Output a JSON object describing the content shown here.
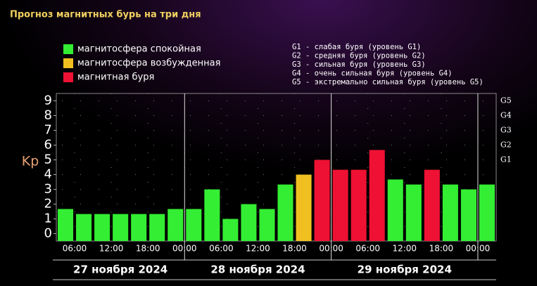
{
  "chart_data": {
    "type": "histogram",
    "title": "Прогноз магнитных бурь на три дня",
    "legend": [
      {
        "label": "магнитосфера спокойная",
        "color": "#33ee33"
      },
      {
        "label": "магнитосфера возбужденная",
        "color": "#f0c020"
      },
      {
        "label": "магнитная буря",
        "color": "#ee1133"
      }
    ],
    "notes": [
      "G1 - слабая буря (уровень G1)",
      "G2 - средняя буря (уровень G2)",
      "G3 - сильная буря (уровень G3)",
      "G4 - очень сильная буря (уровень G4)",
      "G5 - экстремально сильная буря (уровень G5)"
    ],
    "ylabel": "Kp",
    "ylim": [
      -0.5,
      9.5
    ],
    "yticks": [
      0,
      1,
      2,
      3,
      4,
      5,
      6,
      7,
      8,
      9
    ],
    "y2lim": [
      -0.5,
      9.5
    ],
    "y2ticks": [
      {
        "value": 5,
        "label": "G1"
      },
      {
        "value": 6,
        "label": "G2"
      },
      {
        "value": 7,
        "label": "G3"
      },
      {
        "value": 8,
        "label": "G4"
      },
      {
        "value": 9,
        "label": "G5"
      }
    ],
    "xlim": [
      3,
      75
    ],
    "xticks": [
      {
        "value": 6,
        "label": "06:00"
      },
      {
        "value": 12,
        "label": "12:00"
      },
      {
        "value": 18,
        "label": "18:00"
      },
      {
        "value": 24,
        "label": "00:00"
      },
      {
        "value": 30,
        "label": "06:00"
      },
      {
        "value": 36,
        "label": "12:00"
      },
      {
        "value": 42,
        "label": "18:00"
      },
      {
        "value": 48,
        "label": "00:00"
      },
      {
        "value": 54,
        "label": "06:00"
      },
      {
        "value": 60,
        "label": "12:00"
      },
      {
        "value": 66,
        "label": "18:00"
      },
      {
        "value": 72,
        "label": "00:00"
      }
    ],
    "bins": [
      3,
      6,
      9,
      12,
      15,
      18,
      21,
      24,
      27,
      30,
      33,
      36,
      39,
      42,
      45,
      48,
      51,
      54,
      57,
      60,
      63,
      66,
      69,
      72,
      75
    ],
    "values": [
      1.67,
      1.33,
      1.33,
      1.33,
      1.33,
      1.33,
      1.67,
      1.67,
      3,
      1,
      2,
      1.67,
      3.33,
      4,
      5,
      4.33,
      4.33,
      5.67,
      3.67,
      3.33,
      4.33,
      3.33,
      3,
      3.33
    ],
    "colors": [
      "#33ee33",
      "#33ee33",
      "#33ee33",
      "#33ee33",
      "#33ee33",
      "#33ee33",
      "#33ee33",
      "#33ee33",
      "#33ee33",
      "#33ee33",
      "#33ee33",
      "#33ee33",
      "#33ee33",
      "#f0c020",
      "#ee1133",
      "#ee1133",
      "#ee1133",
      "#ee1133",
      "#33ee33",
      "#33ee33",
      "#ee1133",
      "#33ee33",
      "#33ee33",
      "#33ee33"
    ],
    "days": [
      {
        "label": "27 ноября 2024",
        "range": [
          0,
          24
        ]
      },
      {
        "label": "28 ноября 2024",
        "range": [
          24,
          48
        ]
      },
      {
        "label": "29 ноября 2024",
        "range": [
          48,
          72
        ]
      }
    ],
    "grid": true
  }
}
